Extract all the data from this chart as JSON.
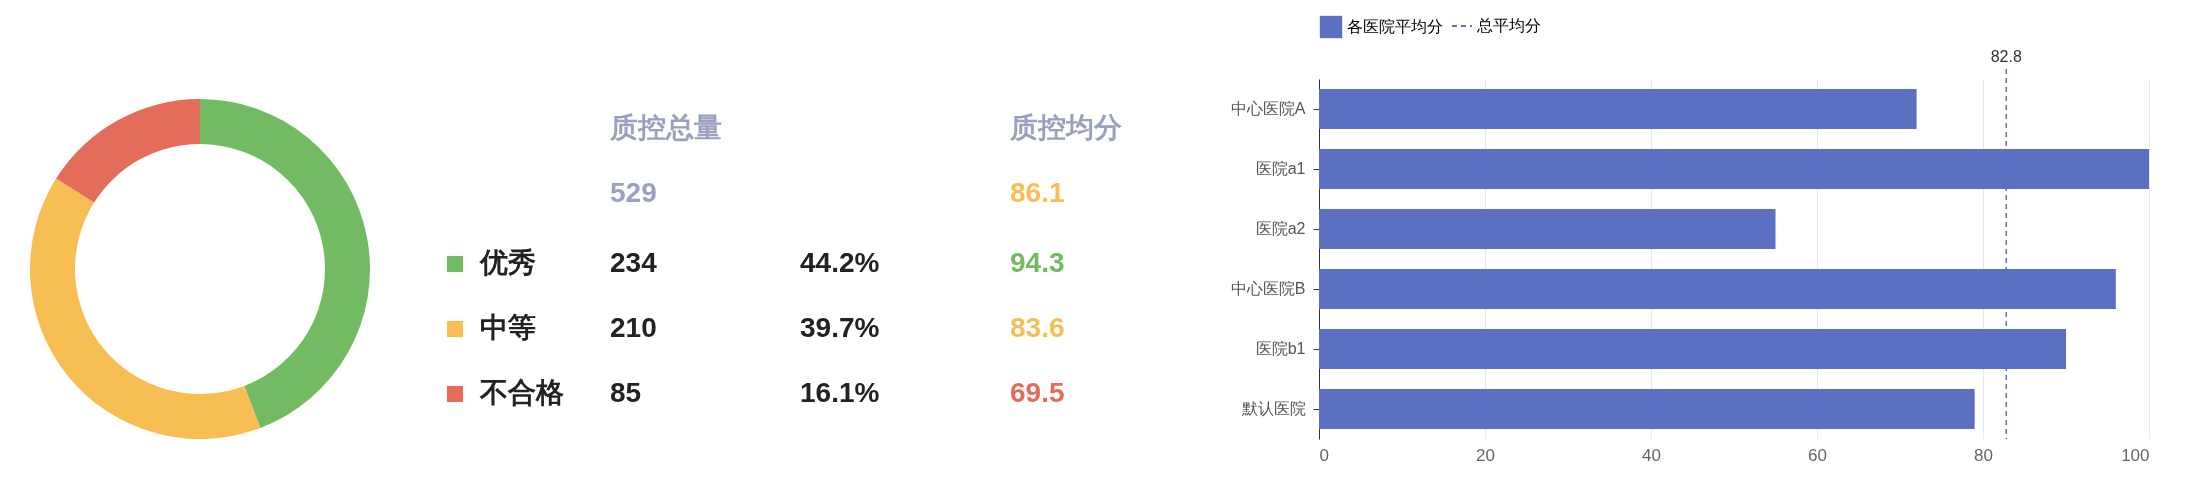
{
  "chart_data": [
    {
      "type": "donut",
      "categories": [
        "优秀",
        "中等",
        "不合格"
      ],
      "values": [
        234,
        210,
        85
      ],
      "colors": [
        "#73bb62",
        "#f6be53",
        "#e36c5b"
      ],
      "data_labels": true,
      "legend": "right",
      "annotations": [
        "质控总量",
        "质控均分",
        "529",
        "86.1",
        "44.2%",
        "39.7%",
        "16.1%",
        "94.3",
        "83.6",
        "69.5"
      ]
    },
    {
      "type": "bar",
      "orientation": "horizontal",
      "categories": [
        "中心医院A",
        "医院a1",
        "医院a2",
        "中心医院B",
        "医院b1",
        "默认医院"
      ],
      "series": [
        {
          "name": "各医院平均分",
          "color": "#5b70c0",
          "values": [
            72,
            100,
            55,
            96,
            90,
            79
          ]
        }
      ],
      "xlim": [
        0,
        100
      ],
      "xticks": [
        0,
        20,
        40,
        60,
        80,
        100
      ],
      "grid": "x",
      "legend": "top",
      "ref_lines": [
        {
          "axis": "x",
          "value": 82.8,
          "label": "82.8",
          "line_style": "dashed",
          "color": "#5b70c0"
        }
      ],
      "annotations": [
        "总平均分"
      ]
    }
  ]
}
